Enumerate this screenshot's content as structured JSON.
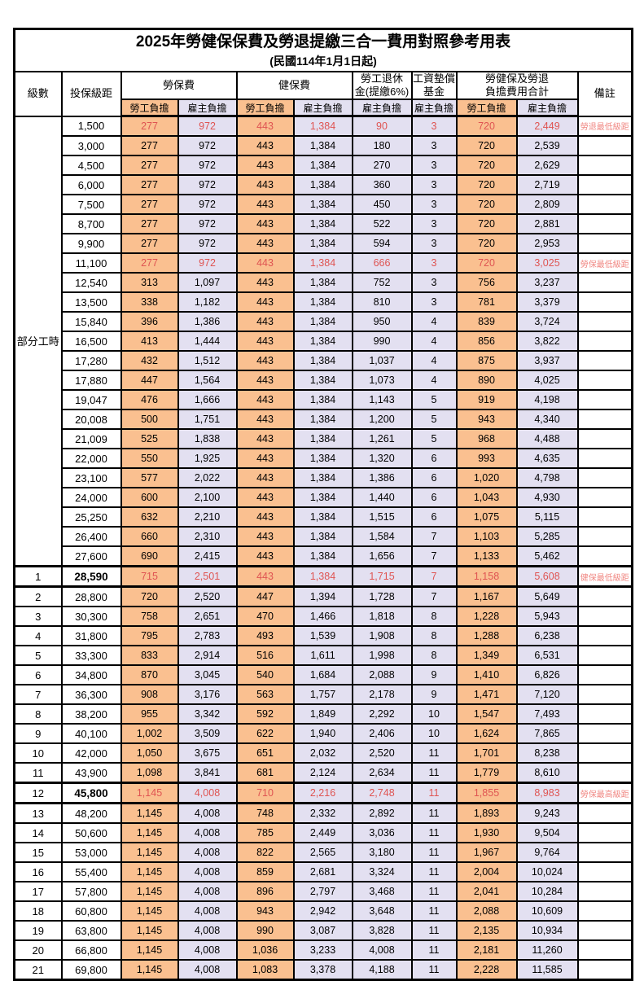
{
  "title": {
    "main": "2025年勞健保保費及勞退提繳三合一費用對照參考用表",
    "sub": "(民國114年1月1日起)"
  },
  "header": {
    "level": "級數",
    "salary": "投保級距",
    "labor_group": "勞保費",
    "health_group": "健保費",
    "pension_line1": "勞工退休",
    "pension_line2": "金(提繳6%)",
    "wage_fund_line1": "工資墊償",
    "wage_fund_line2": "基金",
    "total_line1": "勞健保及勞退",
    "total_line2": "負擔費用合計",
    "note": "備註",
    "sub_employee": "勞工負擔",
    "sub_employer": "雇主負擔"
  },
  "part_time_label": "部分工時",
  "colors": {
    "employee_bg": "#FAC090",
    "employer_bg": "#E3E0F1",
    "red_value": "#DF5452",
    "red_note": "#F08782"
  },
  "rows": [
    {
      "level": "",
      "salary": "1,500",
      "values": [
        "277",
        "972",
        "443",
        "1,384",
        "90",
        "3",
        "720",
        "2,449"
      ],
      "note": "勞退最低級距",
      "red": true,
      "bold": false
    },
    {
      "level": "",
      "salary": "3,000",
      "values": [
        "277",
        "972",
        "443",
        "1,384",
        "180",
        "3",
        "720",
        "2,539"
      ],
      "note": "",
      "red": false,
      "bold": false
    },
    {
      "level": "",
      "salary": "4,500",
      "values": [
        "277",
        "972",
        "443",
        "1,384",
        "270",
        "3",
        "720",
        "2,629"
      ],
      "note": "",
      "red": false,
      "bold": false
    },
    {
      "level": "",
      "salary": "6,000",
      "values": [
        "277",
        "972",
        "443",
        "1,384",
        "360",
        "3",
        "720",
        "2,719"
      ],
      "note": "",
      "red": false,
      "bold": false
    },
    {
      "level": "",
      "salary": "7,500",
      "values": [
        "277",
        "972",
        "443",
        "1,384",
        "450",
        "3",
        "720",
        "2,809"
      ],
      "note": "",
      "red": false,
      "bold": false
    },
    {
      "level": "",
      "salary": "8,700",
      "values": [
        "277",
        "972",
        "443",
        "1,384",
        "522",
        "3",
        "720",
        "2,881"
      ],
      "note": "",
      "red": false,
      "bold": false
    },
    {
      "level": "",
      "salary": "9,900",
      "values": [
        "277",
        "972",
        "443",
        "1,384",
        "594",
        "3",
        "720",
        "2,953"
      ],
      "note": "",
      "red": false,
      "bold": false
    },
    {
      "level": "",
      "salary": "11,100",
      "values": [
        "277",
        "972",
        "443",
        "1,384",
        "666",
        "3",
        "720",
        "3,025"
      ],
      "note": "勞保最低級距",
      "red": true,
      "bold": false
    },
    {
      "level": "",
      "salary": "12,540",
      "values": [
        "313",
        "1,097",
        "443",
        "1,384",
        "752",
        "3",
        "756",
        "3,237"
      ],
      "note": "",
      "red": false,
      "bold": false
    },
    {
      "level": "",
      "salary": "13,500",
      "values": [
        "338",
        "1,182",
        "443",
        "1,384",
        "810",
        "3",
        "781",
        "3,379"
      ],
      "note": "",
      "red": false,
      "bold": false
    },
    {
      "level": "",
      "salary": "15,840",
      "values": [
        "396",
        "1,386",
        "443",
        "1,384",
        "950",
        "4",
        "839",
        "3,724"
      ],
      "note": "",
      "red": false,
      "bold": false
    },
    {
      "level": "",
      "salary": "16,500",
      "values": [
        "413",
        "1,444",
        "443",
        "1,384",
        "990",
        "4",
        "856",
        "3,822"
      ],
      "note": "",
      "red": false,
      "bold": false
    },
    {
      "level": "",
      "salary": "17,280",
      "values": [
        "432",
        "1,512",
        "443",
        "1,384",
        "1,037",
        "4",
        "875",
        "3,937"
      ],
      "note": "",
      "red": false,
      "bold": false
    },
    {
      "level": "",
      "salary": "17,880",
      "values": [
        "447",
        "1,564",
        "443",
        "1,384",
        "1,073",
        "4",
        "890",
        "4,025"
      ],
      "note": "",
      "red": false,
      "bold": false
    },
    {
      "level": "",
      "salary": "19,047",
      "values": [
        "476",
        "1,666",
        "443",
        "1,384",
        "1,143",
        "5",
        "919",
        "4,198"
      ],
      "note": "",
      "red": false,
      "bold": false
    },
    {
      "level": "",
      "salary": "20,008",
      "values": [
        "500",
        "1,751",
        "443",
        "1,384",
        "1,200",
        "5",
        "943",
        "4,340"
      ],
      "note": "",
      "red": false,
      "bold": false
    },
    {
      "level": "",
      "salary": "21,009",
      "values": [
        "525",
        "1,838",
        "443",
        "1,384",
        "1,261",
        "5",
        "968",
        "4,488"
      ],
      "note": "",
      "red": false,
      "bold": false
    },
    {
      "level": "",
      "salary": "22,000",
      "values": [
        "550",
        "1,925",
        "443",
        "1,384",
        "1,320",
        "6",
        "993",
        "4,635"
      ],
      "note": "",
      "red": false,
      "bold": false
    },
    {
      "level": "",
      "salary": "23,100",
      "values": [
        "577",
        "2,022",
        "443",
        "1,384",
        "1,386",
        "6",
        "1,020",
        "4,798"
      ],
      "note": "",
      "red": false,
      "bold": false
    },
    {
      "level": "",
      "salary": "24,000",
      "values": [
        "600",
        "2,100",
        "443",
        "1,384",
        "1,440",
        "6",
        "1,043",
        "4,930"
      ],
      "note": "",
      "red": false,
      "bold": false
    },
    {
      "level": "",
      "salary": "25,250",
      "values": [
        "632",
        "2,210",
        "443",
        "1,384",
        "1,515",
        "6",
        "1,075",
        "5,115"
      ],
      "note": "",
      "red": false,
      "bold": false
    },
    {
      "level": "",
      "salary": "26,400",
      "values": [
        "660",
        "2,310",
        "443",
        "1,384",
        "1,584",
        "7",
        "1,103",
        "5,285"
      ],
      "note": "",
      "red": false,
      "bold": false
    },
    {
      "level": "",
      "salary": "27,600",
      "values": [
        "690",
        "2,415",
        "443",
        "1,384",
        "1,656",
        "7",
        "1,133",
        "5,462"
      ],
      "note": "",
      "red": false,
      "bold": false
    },
    {
      "level": "1",
      "salary": "28,590",
      "values": [
        "715",
        "2,501",
        "443",
        "1,384",
        "1,715",
        "7",
        "1,158",
        "5,608"
      ],
      "note": "健保最低級距",
      "red": true,
      "bold": true
    },
    {
      "level": "2",
      "salary": "28,800",
      "values": [
        "720",
        "2,520",
        "447",
        "1,394",
        "1,728",
        "7",
        "1,167",
        "5,649"
      ],
      "note": "",
      "red": false,
      "bold": false
    },
    {
      "level": "3",
      "salary": "30,300",
      "values": [
        "758",
        "2,651",
        "470",
        "1,466",
        "1,818",
        "8",
        "1,228",
        "5,943"
      ],
      "note": "",
      "red": false,
      "bold": false
    },
    {
      "level": "4",
      "salary": "31,800",
      "values": [
        "795",
        "2,783",
        "493",
        "1,539",
        "1,908",
        "8",
        "1,288",
        "6,238"
      ],
      "note": "",
      "red": false,
      "bold": false
    },
    {
      "level": "5",
      "salary": "33,300",
      "values": [
        "833",
        "2,914",
        "516",
        "1,611",
        "1,998",
        "8",
        "1,349",
        "6,531"
      ],
      "note": "",
      "red": false,
      "bold": false
    },
    {
      "level": "6",
      "salary": "34,800",
      "values": [
        "870",
        "3,045",
        "540",
        "1,684",
        "2,088",
        "9",
        "1,410",
        "6,826"
      ],
      "note": "",
      "red": false,
      "bold": false
    },
    {
      "level": "7",
      "salary": "36,300",
      "values": [
        "908",
        "3,176",
        "563",
        "1,757",
        "2,178",
        "9",
        "1,471",
        "7,120"
      ],
      "note": "",
      "red": false,
      "bold": false
    },
    {
      "level": "8",
      "salary": "38,200",
      "values": [
        "955",
        "3,342",
        "592",
        "1,849",
        "2,292",
        "10",
        "1,547",
        "7,493"
      ],
      "note": "",
      "red": false,
      "bold": false
    },
    {
      "level": "9",
      "salary": "40,100",
      "values": [
        "1,002",
        "3,509",
        "622",
        "1,940",
        "2,406",
        "10",
        "1,624",
        "7,865"
      ],
      "note": "",
      "red": false,
      "bold": false
    },
    {
      "level": "10",
      "salary": "42,000",
      "values": [
        "1,050",
        "3,675",
        "651",
        "2,032",
        "2,520",
        "11",
        "1,701",
        "8,238"
      ],
      "note": "",
      "red": false,
      "bold": false
    },
    {
      "level": "11",
      "salary": "43,900",
      "values": [
        "1,098",
        "3,841",
        "681",
        "2,124",
        "2,634",
        "11",
        "1,779",
        "8,610"
      ],
      "note": "",
      "red": false,
      "bold": false
    },
    {
      "level": "12",
      "salary": "45,800",
      "values": [
        "1,145",
        "4,008",
        "710",
        "2,216",
        "2,748",
        "11",
        "1,855",
        "8,983"
      ],
      "note": "勞保最高級距",
      "red": true,
      "bold": true
    },
    {
      "level": "13",
      "salary": "48,200",
      "values": [
        "1,145",
        "4,008",
        "748",
        "2,332",
        "2,892",
        "11",
        "1,893",
        "9,243"
      ],
      "note": "",
      "red": false,
      "bold": false
    },
    {
      "level": "14",
      "salary": "50,600",
      "values": [
        "1,145",
        "4,008",
        "785",
        "2,449",
        "3,036",
        "11",
        "1,930",
        "9,504"
      ],
      "note": "",
      "red": false,
      "bold": false
    },
    {
      "level": "15",
      "salary": "53,000",
      "values": [
        "1,145",
        "4,008",
        "822",
        "2,565",
        "3,180",
        "11",
        "1,967",
        "9,764"
      ],
      "note": "",
      "red": false,
      "bold": false
    },
    {
      "level": "16",
      "salary": "55,400",
      "values": [
        "1,145",
        "4,008",
        "859",
        "2,681",
        "3,324",
        "11",
        "2,004",
        "10,024"
      ],
      "note": "",
      "red": false,
      "bold": false
    },
    {
      "level": "17",
      "salary": "57,800",
      "values": [
        "1,145",
        "4,008",
        "896",
        "2,797",
        "3,468",
        "11",
        "2,041",
        "10,284"
      ],
      "note": "",
      "red": false,
      "bold": false
    },
    {
      "level": "18",
      "salary": "60,800",
      "values": [
        "1,145",
        "4,008",
        "943",
        "2,942",
        "3,648",
        "11",
        "2,088",
        "10,609"
      ],
      "note": "",
      "red": false,
      "bold": false
    },
    {
      "level": "19",
      "salary": "63,800",
      "values": [
        "1,145",
        "4,008",
        "990",
        "3,087",
        "3,828",
        "11",
        "2,135",
        "10,934"
      ],
      "note": "",
      "red": false,
      "bold": false
    },
    {
      "level": "20",
      "salary": "66,800",
      "values": [
        "1,145",
        "4,008",
        "1,036",
        "3,233",
        "4,008",
        "11",
        "2,181",
        "11,260"
      ],
      "note": "",
      "red": false,
      "bold": false
    },
    {
      "level": "21",
      "salary": "69,800",
      "values": [
        "1,145",
        "4,008",
        "1,083",
        "3,378",
        "4,188",
        "11",
        "2,228",
        "11,585"
      ],
      "note": "",
      "red": false,
      "bold": false
    }
  ]
}
